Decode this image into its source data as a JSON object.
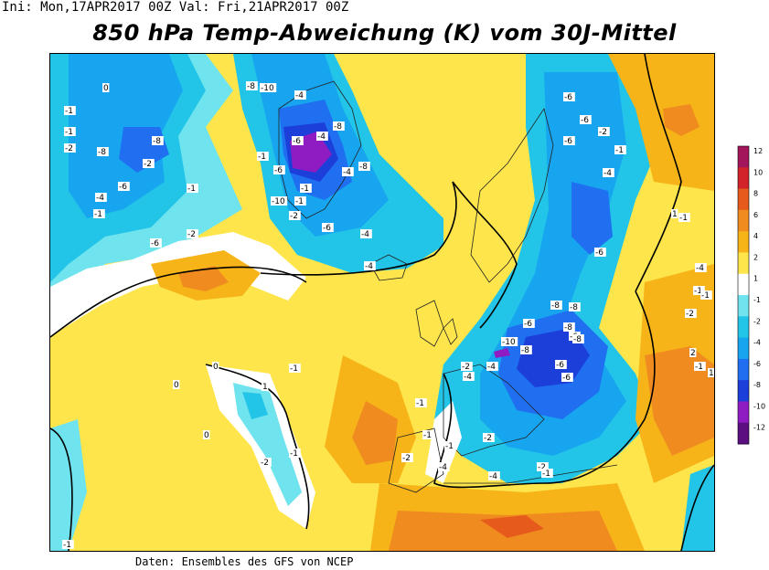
{
  "header": {
    "text": "Ini: Mon,17APR2017 00Z Val: Fri,21APR2017 00Z"
  },
  "title": "850 hPa Temp-Abweichung (K) vom 30J-Mittel",
  "footer": "Daten: Ensembles des GFS von NCEP",
  "legend": {
    "levels": [
      "12",
      "10",
      "8",
      "6",
      "4",
      "2",
      "1",
      "-1",
      "-2",
      "-4",
      "-6",
      "-8",
      "-10",
      "-12"
    ],
    "colors": [
      "#a3165c",
      "#d2232a",
      "#e65b1c",
      "#f08c1f",
      "#f6b419",
      "#fde54b",
      "#ffffff",
      "#6fe3ee",
      "#22c5e8",
      "#17a5ef",
      "#1f6ff0",
      "#1c3fd9",
      "#8f1cc2",
      "#5b0f80"
    ]
  },
  "contour_labels": [
    {
      "t": "0"
    },
    {
      "t": "-1"
    },
    {
      "t": "-1"
    },
    {
      "t": "-2"
    },
    {
      "t": "-8"
    },
    {
      "t": "-8"
    },
    {
      "t": "-2"
    },
    {
      "t": "-4"
    },
    {
      "t": "-6"
    },
    {
      "t": "-1"
    },
    {
      "t": "-2"
    },
    {
      "t": "-6"
    },
    {
      "t": "-8"
    },
    {
      "t": "-10"
    },
    {
      "t": "-4"
    },
    {
      "t": "-6"
    },
    {
      "t": "-8"
    },
    {
      "t": "-4"
    },
    {
      "t": "-6"
    },
    {
      "t": "-8"
    },
    {
      "t": "-4"
    },
    {
      "t": "-1"
    },
    {
      "t": "-10"
    },
    {
      "t": "-1"
    },
    {
      "t": "-2"
    },
    {
      "t": "-6"
    },
    {
      "t": "-4"
    },
    {
      "t": "-4"
    },
    {
      "t": "-1"
    },
    {
      "t": "-6"
    },
    {
      "t": "-6"
    },
    {
      "t": "-2"
    },
    {
      "t": "-6"
    },
    {
      "t": "-1"
    },
    {
      "t": "-4"
    },
    {
      "t": "-6"
    },
    {
      "t": "-8"
    },
    {
      "t": "-8"
    },
    {
      "t": "-6"
    },
    {
      "t": "-8"
    },
    {
      "t": "-6"
    },
    {
      "t": "-10"
    },
    {
      "t": "-8"
    },
    {
      "t": "-6"
    },
    {
      "t": "-6"
    },
    {
      "t": "-8"
    },
    {
      "t": "-4"
    },
    {
      "t": "-2"
    },
    {
      "t": "-4"
    },
    {
      "t": "-2"
    },
    {
      "t": "-1"
    },
    {
      "t": "-1"
    },
    {
      "t": "-2"
    },
    {
      "t": "-1"
    },
    {
      "t": "-4"
    },
    {
      "t": "-2"
    },
    {
      "t": "-4"
    },
    {
      "t": "-1"
    },
    {
      "t": "-1"
    },
    {
      "t": "1"
    },
    {
      "t": "0"
    },
    {
      "t": "0"
    },
    {
      "t": "0"
    },
    {
      "t": "-1"
    },
    {
      "t": "-2"
    },
    {
      "t": "-1"
    },
    {
      "t": "-1"
    },
    {
      "t": "1"
    },
    {
      "t": "-1"
    },
    {
      "t": "-1"
    },
    {
      "t": "-4"
    },
    {
      "t": "-1"
    },
    {
      "t": "-2"
    },
    {
      "t": "2"
    },
    {
      "t": "-1"
    },
    {
      "t": "1"
    }
  ]
}
